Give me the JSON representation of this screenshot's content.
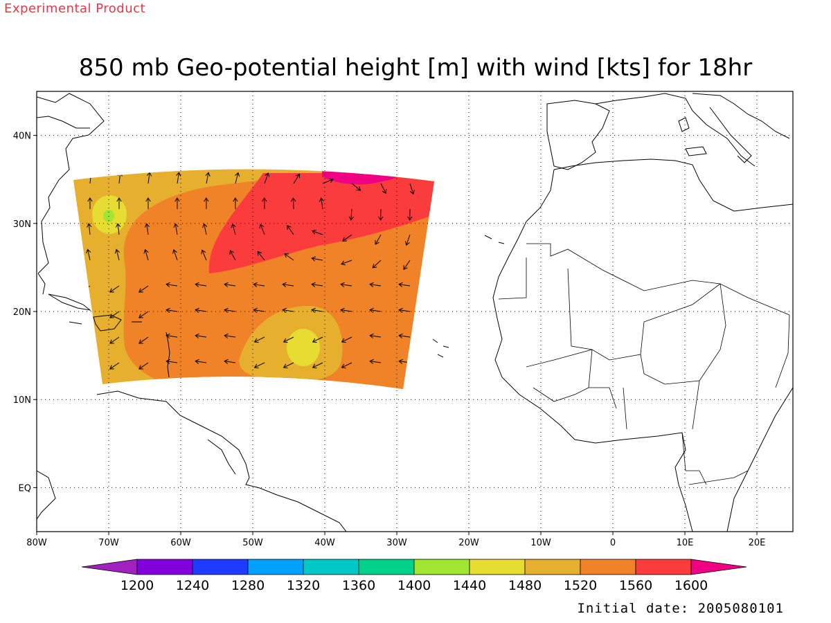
{
  "header": {
    "experimental_label": "Experimental Product",
    "title": "850 mb Geo-potential height [m] with wind [kts] for 18hr"
  },
  "footer": {
    "initial_date": "Initial date: 2005080101"
  },
  "map": {
    "lon_ticks": [
      "80W",
      "70W",
      "60W",
      "50W",
      "40W",
      "30W",
      "20W",
      "10W",
      "0",
      "10E",
      "20E"
    ],
    "lat_ticks": [
      "40N",
      "30N",
      "20N",
      "10N",
      "EQ"
    ],
    "lon_range": [
      -80,
      25
    ],
    "lat_range": [
      -5,
      45
    ],
    "grid": "dotted",
    "projection": "lat-lon"
  },
  "colorbar": {
    "levels": [
      "1200",
      "1240",
      "1280",
      "1320",
      "1360",
      "1400",
      "1440",
      "1480",
      "1520",
      "1560",
      "1600"
    ],
    "colors": [
      "#a020c0",
      "#8200dc",
      "#1e3cff",
      "#00a0ff",
      "#00c8c8",
      "#00d28c",
      "#a0e632",
      "#e6dc32",
      "#e6af2d",
      "#f08228",
      "#fa3c3c",
      "#f00082"
    ],
    "extend": "both"
  },
  "field": {
    "name": "850 mb geopotential height",
    "units": "m",
    "domain_background": "1520-1560",
    "features": [
      {
        "type": "high",
        "range": "1560-1600",
        "location": "central subtropical Atlantic"
      },
      {
        "type": "high",
        "range": ">1600",
        "location": "35N 40W-30W"
      },
      {
        "type": "low",
        "range": "1480-1520",
        "location": "30N 72W"
      },
      {
        "type": "low",
        "range": "1440-1480",
        "location": "30N 70W"
      },
      {
        "type": "low",
        "range": "1480-1520",
        "location": "16N 42W"
      },
      {
        "type": "low",
        "range": "1440-1480",
        "location": "15N 43W"
      }
    ]
  }
}
